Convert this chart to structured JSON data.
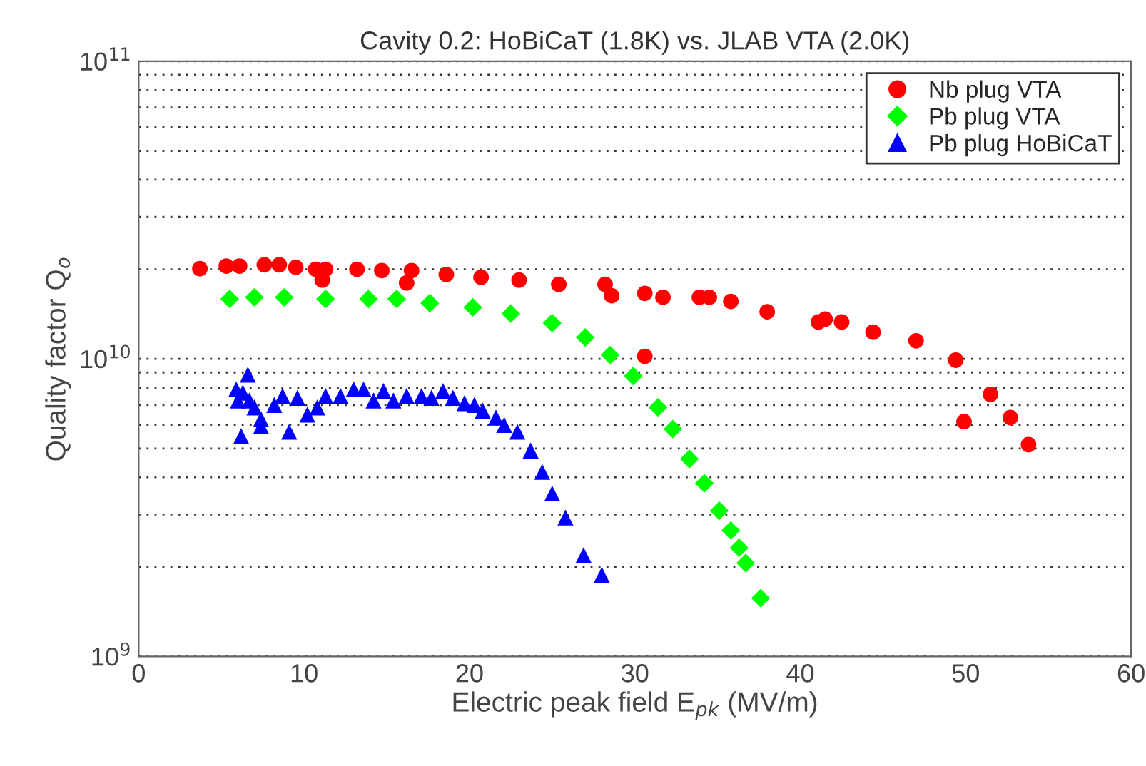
{
  "chart_data": {
    "type": "scatter",
    "title": "Cavity 0.2: HoBiCaT (1.8K) vs. JLAB VTA (2.0K)",
    "xlabel": "Electric peak field E$_{pk}$ (MV/m)",
    "ylabel": "Quality factor Q$_{o}$",
    "log": "y",
    "xlim": [
      0,
      60
    ],
    "xticks": [
      0,
      10,
      20,
      30,
      40,
      50,
      60
    ],
    "ylim": [
      1000000000.0,
      100000000000.0
    ],
    "yticks": [
      {
        "value": 1000000000.0,
        "label": "10$^{9}$"
      },
      {
        "value": 10000000000.0,
        "label": "10$^{10}$"
      },
      {
        "value": 100000000000.0,
        "label": "10$^{11}$"
      }
    ],
    "grid": "y",
    "legend": "top right",
    "series": [
      {
        "name": "Nb plug VTA",
        "color": "#ff0000",
        "marker": "circle",
        "x": [
          3.7,
          5.3,
          6.1,
          7.6,
          8.5,
          9.5,
          10.7,
          11.3,
          11.1,
          13.2,
          14.7,
          16.5,
          16.2,
          18.6,
          20.7,
          23.0,
          25.4,
          28.2,
          28.6,
          30.6,
          31.7,
          33.9,
          34.5,
          35.8,
          38.0,
          30.6,
          41.1,
          41.5,
          42.5,
          44.4,
          47.0,
          49.4,
          49.9,
          51.5,
          52.7,
          53.8
        ],
        "values": [
          20100000000.0,
          20500000000.0,
          20500000000.0,
          20700000000.0,
          20700000000.0,
          20300000000.0,
          20000000000.0,
          20000000000.0,
          18400000000.0,
          20000000000.0,
          19800000000.0,
          19800000000.0,
          18000000000.0,
          19200000000.0,
          18800000000.0,
          18400000000.0,
          17800000000.0,
          17800000000.0,
          16300000000.0,
          16600000000.0,
          16100000000.0,
          16100000000.0,
          16100000000.0,
          15600000000.0,
          14400000000.0,
          10200000000.0,
          13300000000.0,
          13600000000.0,
          13300000000.0,
          12300000000.0,
          11500000000.0,
          9900000000.0,
          6150000000.0,
          7600000000.0,
          6350000000.0,
          5150000000.0
        ]
      },
      {
        "name": "Pb plug VTA",
        "color": "#00ff00",
        "marker": "diamond",
        "x": [
          5.5,
          7.0,
          8.8,
          11.3,
          13.9,
          15.6,
          17.6,
          20.2,
          22.5,
          25.0,
          27.0,
          28.5,
          29.9,
          31.4,
          32.3,
          33.3,
          34.2,
          35.1,
          35.8,
          36.3,
          36.7,
          37.6
        ],
        "values": [
          15900000000.0,
          16100000000.0,
          16100000000.0,
          15900000000.0,
          15900000000.0,
          15900000000.0,
          15400000000.0,
          14900000000.0,
          14200000000.0,
          13200000000.0,
          11800000000.0,
          10300000000.0,
          8750000000.0,
          6870000000.0,
          5810000000.0,
          4610000000.0,
          3820000000.0,
          3090000000.0,
          2650000000.0,
          2320000000.0,
          2060000000.0,
          1570000000.0
        ]
      },
      {
        "name": "Pb plug HoBiCaT",
        "color": "#0000ff",
        "marker": "triangle",
        "x": [
          6.6,
          5.9,
          6.3,
          6.7,
          6.0,
          7.0,
          6.2,
          7.4,
          7.4,
          8.2,
          9.1,
          8.7,
          9.6,
          10.2,
          10.8,
          11.3,
          12.2,
          13.0,
          13.6,
          14.2,
          14.8,
          15.4,
          16.2,
          17.1,
          17.7,
          18.4,
          19.0,
          19.7,
          20.3,
          20.8,
          21.6,
          22.1,
          22.9,
          23.7,
          24.4,
          25.0,
          25.8,
          26.9,
          28.0
        ],
        "values": [
          8850000000.0,
          7900000000.0,
          7700000000.0,
          7250000000.0,
          7250000000.0,
          6870000000.0,
          5500000000.0,
          5940000000.0,
          6280000000.0,
          7000000000.0,
          5690000000.0,
          7500000000.0,
          7400000000.0,
          6500000000.0,
          6870000000.0,
          7500000000.0,
          7500000000.0,
          7900000000.0,
          7900000000.0,
          7250000000.0,
          7800000000.0,
          7250000000.0,
          7500000000.0,
          7500000000.0,
          7400000000.0,
          7800000000.0,
          7400000000.0,
          7100000000.0,
          7000000000.0,
          6700000000.0,
          6350000000.0,
          6000000000.0,
          5690000000.0,
          4920000000.0,
          4170000000.0,
          3530000000.0,
          2930000000.0,
          2190000000.0,
          1880000000.0
        ]
      }
    ]
  }
}
